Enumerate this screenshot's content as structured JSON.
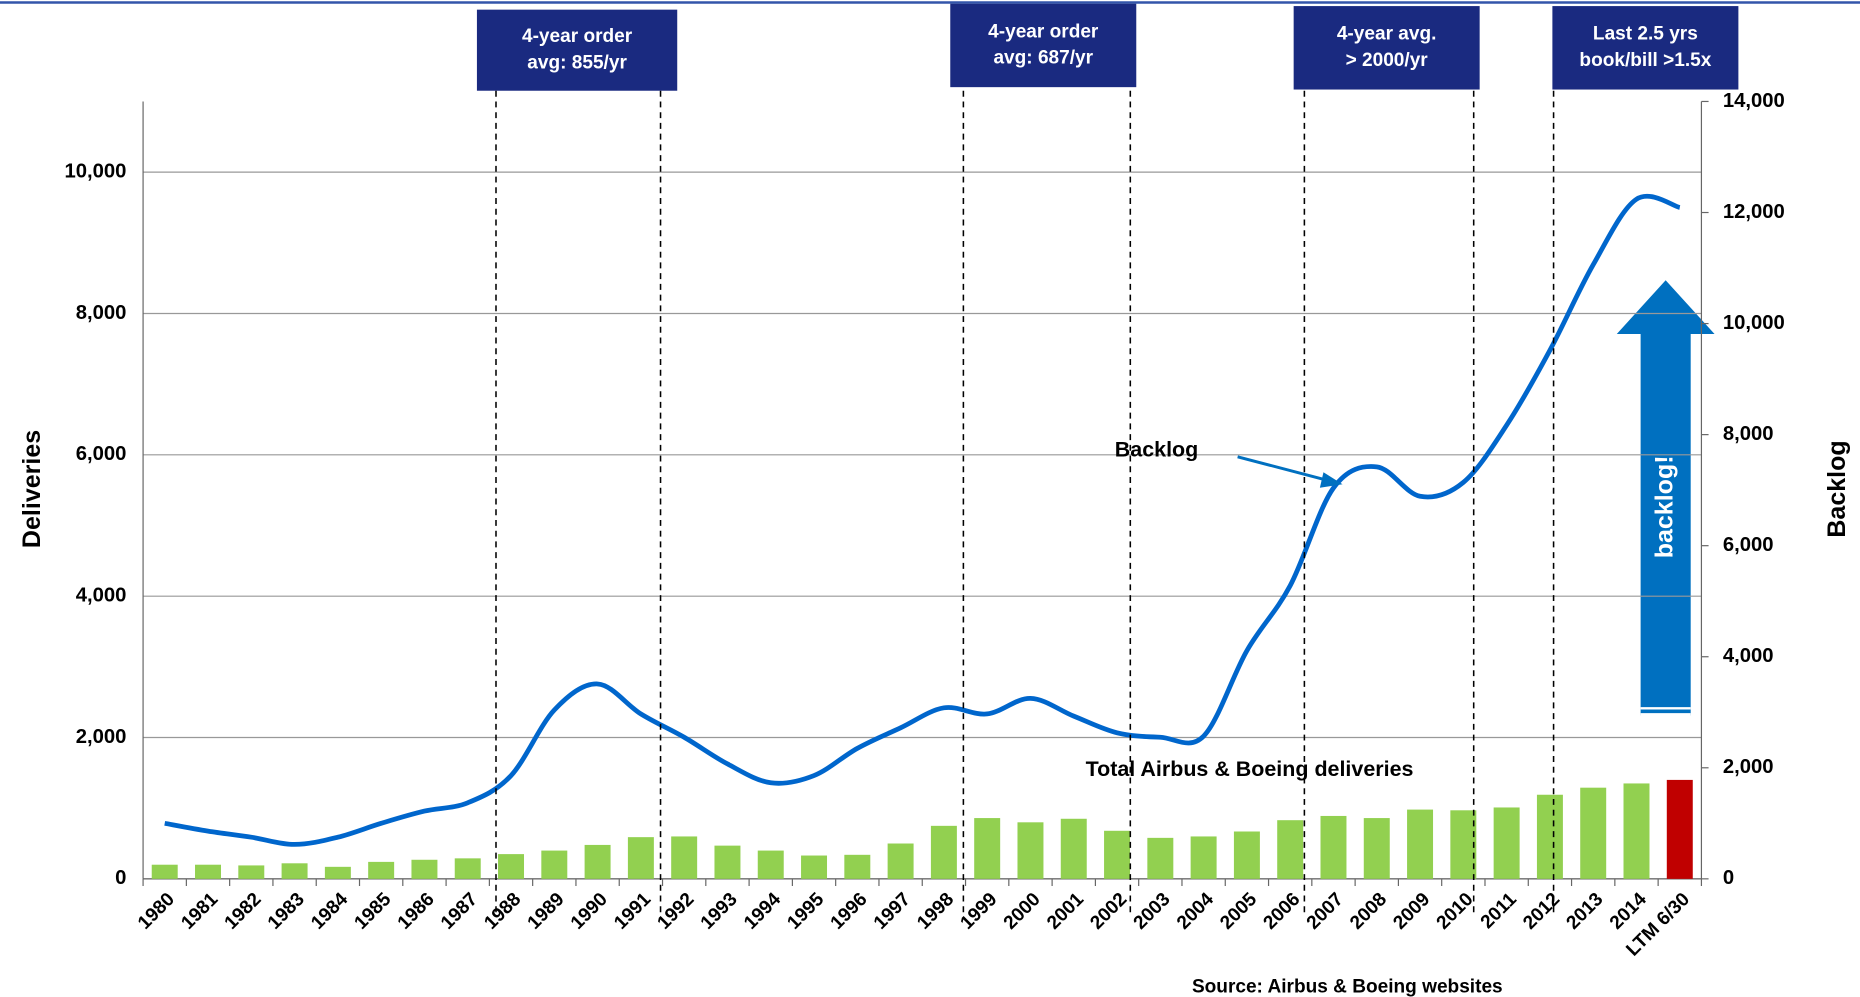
{
  "chart_data": {
    "type": "bar",
    "categories": [
      "1980",
      "1981",
      "1982",
      "1983",
      "1984",
      "1985",
      "1986",
      "1987",
      "1988",
      "1989",
      "1990",
      "1991",
      "1992",
      "1993",
      "1994",
      "1995",
      "1996",
      "1997",
      "1998",
      "1999",
      "2000",
      "2001",
      "2002",
      "2003",
      "2004",
      "2005",
      "2006",
      "2007",
      "2008",
      "2009",
      "2010",
      "2011",
      "2012",
      "2013",
      "2014",
      "LTM 6/30"
    ],
    "series": [
      {
        "name": "Total Airbus & Boeing deliveries",
        "type": "bar",
        "colors": [
          "#92d050",
          "#92d050",
          "#92d050",
          "#92d050",
          "#92d050",
          "#92d050",
          "#92d050",
          "#92d050",
          "#92d050",
          "#92d050",
          "#92d050",
          "#92d050",
          "#92d050",
          "#92d050",
          "#92d050",
          "#92d050",
          "#92d050",
          "#92d050",
          "#92d050",
          "#92d050",
          "#92d050",
          "#92d050",
          "#92d050",
          "#92d050",
          "#92d050",
          "#92d050",
          "#92d050",
          "#92d050",
          "#92d050",
          "#92d050",
          "#92d050",
          "#92d050",
          "#92d050",
          "#92d050",
          "#92d050",
          "#c00000"
        ],
        "values": [
          200,
          200,
          190,
          220,
          170,
          240,
          270,
          290,
          350,
          400,
          480,
          590,
          600,
          470,
          400,
          330,
          340,
          500,
          750,
          860,
          800,
          850,
          680,
          580,
          600,
          670,
          830,
          890,
          860,
          980,
          970,
          1010,
          1190,
          1290,
          1350,
          1400
        ]
      },
      {
        "name": "Backlog",
        "type": "line",
        "color": "#0066cc",
        "axis": "y2",
        "values": [
          1000,
          860,
          750,
          620,
          750,
          1000,
          1220,
          1370,
          1860,
          3040,
          3510,
          2970,
          2550,
          2070,
          1730,
          1860,
          2350,
          2720,
          3080,
          2970,
          3250,
          2930,
          2630,
          2550,
          2570,
          4110,
          5280,
          7040,
          7420,
          6890,
          7140,
          8170,
          9520,
          11060,
          12240,
          12090
        ]
      }
    ],
    "ylabel": "Deliveries",
    "y2label": "Backlog",
    "ylim": [
      0,
      11000
    ],
    "yticks": [
      0,
      {
        "value": 2000,
        "label": "2,000"
      },
      {
        "value": 4000,
        "label": "4,000"
      },
      {
        "value": 6000,
        "label": "6,000"
      },
      {
        "value": 8000,
        "label": "8,000"
      },
      {
        "value": 10000,
        "label": "10,000"
      }
    ],
    "y2lim": [
      0,
      14000
    ],
    "y2ticks": [
      0,
      {
        "value": 2000,
        "label": "2,000"
      },
      {
        "value": 4000,
        "label": "4,000"
      },
      {
        "value": 6000,
        "label": "6,000"
      },
      {
        "value": 8000,
        "label": "8,000"
      },
      {
        "value": 10000,
        "label": "10,000"
      },
      {
        "value": 12000,
        "label": "12,000"
      },
      {
        "value": 14000,
        "label": "14,000"
      }
    ],
    "grid": true,
    "annotations": [
      {
        "lines": [
          "4-year order",
          "avg: 855/yr"
        ]
      },
      {
        "lines": [
          "4-year order",
          "avg: 687/yr"
        ]
      },
      {
        "lines": [
          "4-year avg.",
          "> 2000/yr"
        ]
      },
      {
        "lines": [
          "Last 2.5 yrs",
          "book/bill >1.5x"
        ]
      }
    ],
    "arrow_label": "backlog!",
    "source": "Source: Airbus & Boeing websites"
  }
}
